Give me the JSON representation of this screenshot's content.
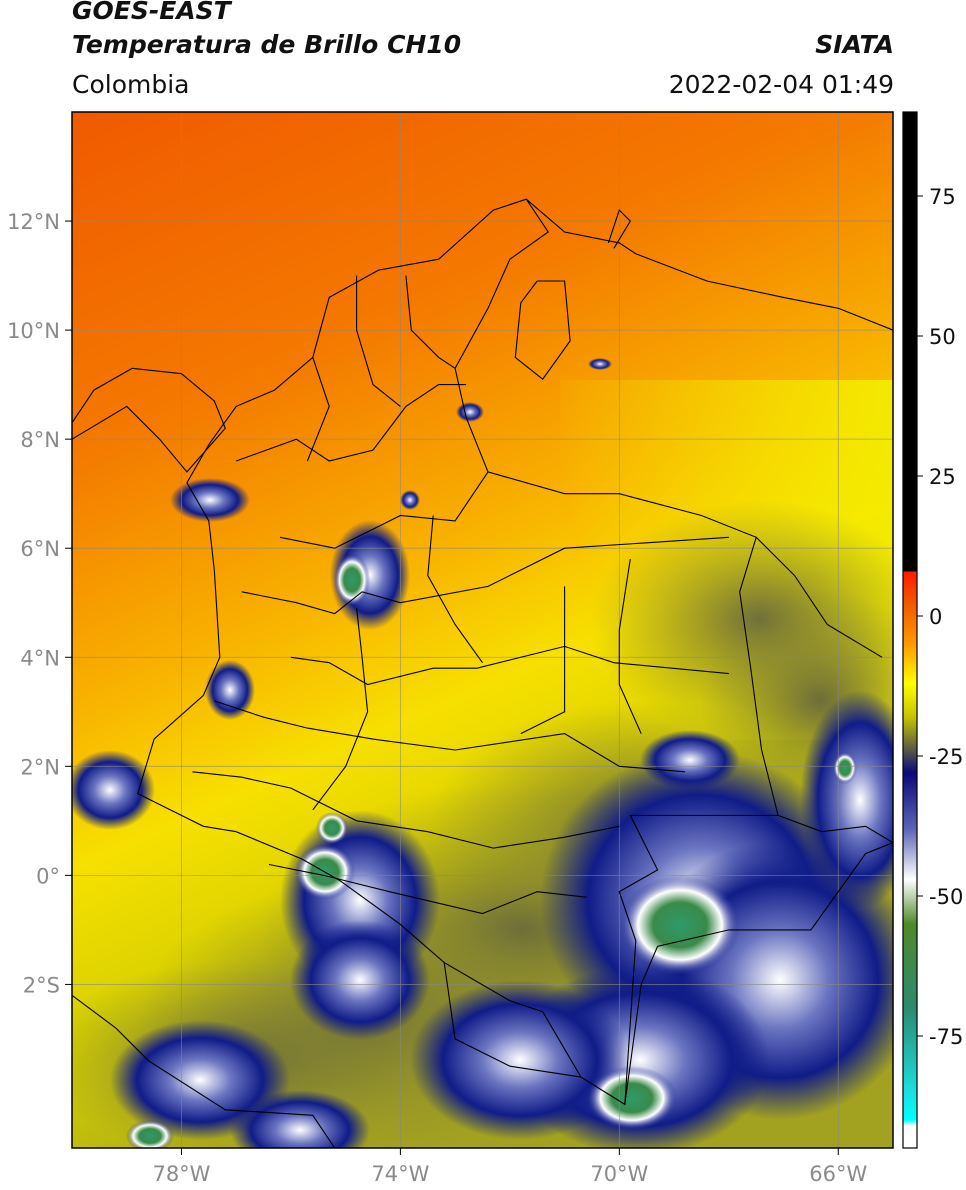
{
  "header": {
    "title_line1": "GOES-EAST",
    "title_line2": "Temperatura de Brillo CH10",
    "source": "SIATA",
    "region": "Colombia",
    "datetime": "2022-02-04 01:49"
  },
  "map": {
    "lon_range": [
      -80,
      -65
    ],
    "lat_range": [
      -5,
      14
    ],
    "lon_ticks": [
      {
        "value": -78,
        "label": "78°W"
      },
      {
        "value": -74,
        "label": "74°W"
      },
      {
        "value": -70,
        "label": "70°W"
      },
      {
        "value": -66,
        "label": "66°W"
      }
    ],
    "lat_ticks": [
      {
        "value": 12,
        "label": "12°N"
      },
      {
        "value": 10,
        "label": "10°N"
      },
      {
        "value": 8,
        "label": "8°N"
      },
      {
        "value": 6,
        "label": "6°N"
      },
      {
        "value": 4,
        "label": "4°N"
      },
      {
        "value": 2,
        "label": "2°N"
      },
      {
        "value": 0,
        "label": "0°"
      },
      {
        "value": -2,
        "label": "2°S"
      }
    ],
    "grid": true,
    "colors": {
      "warm": "#f06a00",
      "mid": "#f7d200",
      "cool": "#9ea32a",
      "cold": "#141f8a",
      "coldest": "#2f8f55"
    }
  },
  "colorbar": {
    "range": [
      -95,
      90
    ],
    "ticks": [
      {
        "value": 75,
        "label": "75"
      },
      {
        "value": 50,
        "label": "50"
      },
      {
        "value": 25,
        "label": "25"
      },
      {
        "value": 0,
        "label": "0"
      },
      {
        "value": -25,
        "label": "-25"
      },
      {
        "value": -50,
        "label": "-50"
      },
      {
        "value": -75,
        "label": "-75"
      }
    ],
    "stops": [
      {
        "value": 90,
        "color": "#000000"
      },
      {
        "value": 8,
        "color": "#000000"
      },
      {
        "value": 7.9,
        "color": "#ff1a00"
      },
      {
        "value": 2,
        "color": "#f25b00"
      },
      {
        "value": -5,
        "color": "#ff9a00"
      },
      {
        "value": -12,
        "color": "#ffff00"
      },
      {
        "value": -18,
        "color": "#c6c400"
      },
      {
        "value": -24,
        "color": "#56564a"
      },
      {
        "value": -28,
        "color": "#0a0a7a"
      },
      {
        "value": -38,
        "color": "#5a64b4"
      },
      {
        "value": -47,
        "color": "#ffffff"
      },
      {
        "value": -55,
        "color": "#4f8a2a"
      },
      {
        "value": -70,
        "color": "#2c8a70"
      },
      {
        "value": -85,
        "color": "#1be0e0"
      },
      {
        "value": -90,
        "color": "#00ffff"
      },
      {
        "value": -91,
        "color": "#ffffff"
      },
      {
        "value": -95,
        "color": "#ffffff"
      }
    ]
  }
}
